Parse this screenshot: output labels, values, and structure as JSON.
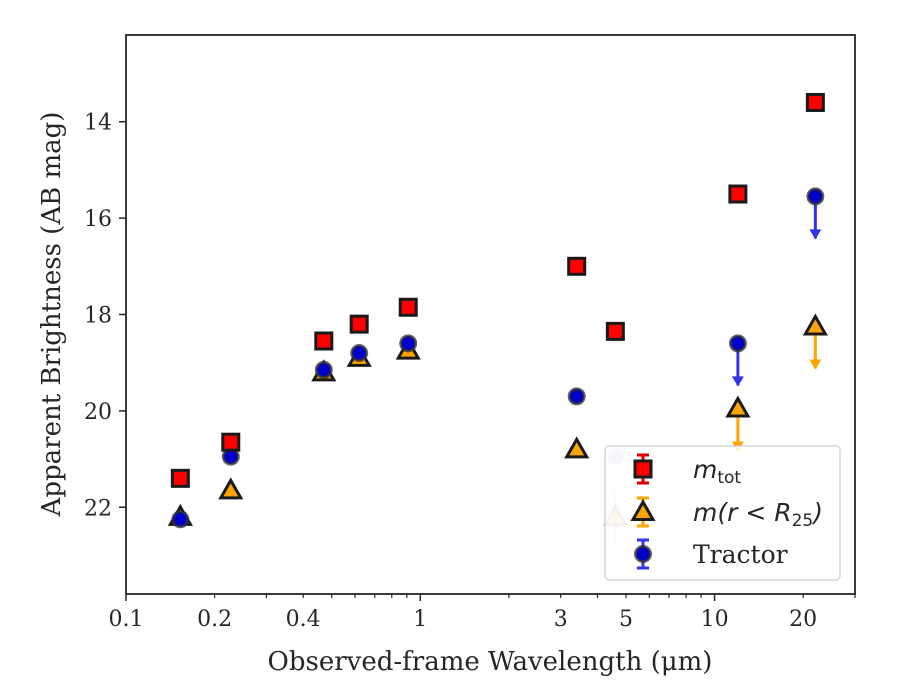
{
  "chart_data": {
    "type": "scatter",
    "xlabel": "Observed-frame Wavelength (μm)",
    "ylabel": "Apparent Brightness (AB mag)",
    "xscale": "log",
    "xlim": [
      0.1,
      30
    ],
    "ylim": [
      23.8,
      12.2
    ],
    "y_inverted": true,
    "grid": false,
    "legend_location": "lower right",
    "x_ticks": [
      {
        "value": 0.1,
        "label": "0.1"
      },
      {
        "value": 0.2,
        "label": "0.2"
      },
      {
        "value": 0.4,
        "label": "0.4"
      },
      {
        "value": 1,
        "label": "1"
      },
      {
        "value": 3,
        "label": "3"
      },
      {
        "value": 5,
        "label": "5"
      },
      {
        "value": 10,
        "label": "10"
      },
      {
        "value": 20,
        "label": "20"
      }
    ],
    "y_ticks": [
      {
        "value": 14,
        "label": "14"
      },
      {
        "value": 16,
        "label": "16"
      },
      {
        "value": 18,
        "label": "18"
      },
      {
        "value": 20,
        "label": "20"
      },
      {
        "value": 22,
        "label": "22"
      }
    ],
    "series": [
      {
        "name": "m_tot",
        "legend_main": "m",
        "legend_sub": "tot",
        "marker": "square",
        "color": "#ff0000",
        "edge_color": "#1a1a1a",
        "points": [
          {
            "x": 0.153,
            "y": 21.4
          },
          {
            "x": 0.227,
            "y": 20.65
          },
          {
            "x": 0.47,
            "y": 18.55
          },
          {
            "x": 0.62,
            "y": 18.2
          },
          {
            "x": 0.91,
            "y": 17.85
          },
          {
            "x": 3.4,
            "y": 17.0
          },
          {
            "x": 4.6,
            "y": 18.35
          },
          {
            "x": 12.0,
            "y": 15.5
          },
          {
            "x": 22.0,
            "y": 13.6
          }
        ]
      },
      {
        "name": "m(r < R_25)",
        "legend_main": "m(r < R",
        "legend_sub": "25",
        "legend_tail": ")",
        "marker": "triangle",
        "color": "#ffa500",
        "edge_color": "#1a1a1a",
        "points": [
          {
            "x": 0.153,
            "y": 22.2
          },
          {
            "x": 0.227,
            "y": 21.65
          },
          {
            "x": 0.47,
            "y": 19.2
          },
          {
            "x": 0.62,
            "y": 18.9
          },
          {
            "x": 0.91,
            "y": 18.75
          },
          {
            "x": 3.4,
            "y": 20.8
          },
          {
            "x": 4.6,
            "y": 22.2,
            "faded": true
          },
          {
            "x": 12.0,
            "y": 19.95,
            "upper_limit": true
          },
          {
            "x": 22.0,
            "y": 18.25,
            "upper_limit": true
          }
        ]
      },
      {
        "name": "Tractor",
        "marker": "circle",
        "color": "#0000cc",
        "edge_color": "#333333",
        "points": [
          {
            "x": 0.153,
            "y": 22.25
          },
          {
            "x": 0.227,
            "y": 20.95
          },
          {
            "x": 0.47,
            "y": 19.15
          },
          {
            "x": 0.62,
            "y": 18.8
          },
          {
            "x": 0.91,
            "y": 18.6
          },
          {
            "x": 3.4,
            "y": 19.7
          },
          {
            "x": 4.6,
            "y": 20.95,
            "faded": true
          },
          {
            "x": 12.0,
            "y": 18.6,
            "upper_limit": true
          },
          {
            "x": 22.0,
            "y": 15.55,
            "upper_limit": true
          }
        ]
      }
    ]
  }
}
